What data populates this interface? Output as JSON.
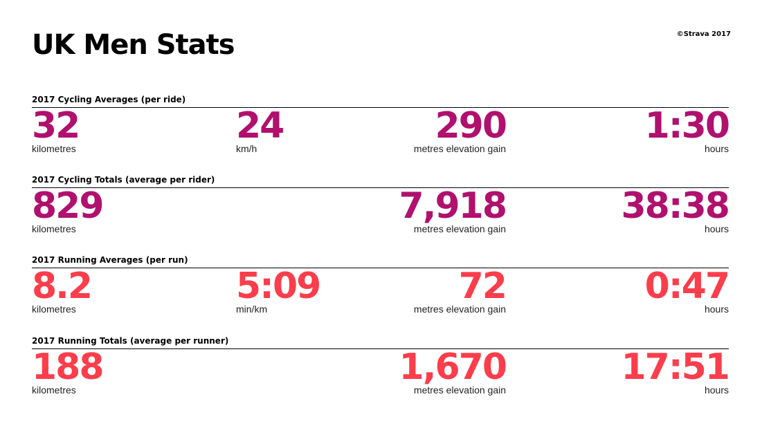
{
  "header": {
    "title": "UK Men Stats",
    "copyright": "©Strava 2017"
  },
  "colors": {
    "cycling": "#b0106e",
    "running": "#fc3d4b"
  },
  "sections": [
    {
      "title": "2017 Cycling Averages (per ride)",
      "stats": [
        {
          "value": "32",
          "unit": "kilometres"
        },
        {
          "value": "24",
          "unit": "km/h"
        },
        {
          "value": "290",
          "unit": "metres elevation gain"
        },
        {
          "value": "1:30",
          "unit": "hours"
        }
      ]
    },
    {
      "title": "2017 Cycling Totals (average per rider)",
      "stats": [
        {
          "value": "829",
          "unit": "kilometres"
        },
        {
          "value": "7,918",
          "unit": "metres elevation gain"
        },
        {
          "value": "38:38",
          "unit": "hours"
        }
      ]
    },
    {
      "title": "2017 Running Averages (per run)",
      "stats": [
        {
          "value": "8.2",
          "unit": "kilometres"
        },
        {
          "value": "5:09",
          "unit": "min/km"
        },
        {
          "value": "72",
          "unit": "metres elevation gain"
        },
        {
          "value": "0:47",
          "unit": "hours"
        }
      ]
    },
    {
      "title": "2017 Running Totals (average per runner)",
      "stats": [
        {
          "value": "188",
          "unit": "kilometres"
        },
        {
          "value": "1,670",
          "unit": "metres elevation gain"
        },
        {
          "value": "17:51",
          "unit": "hours"
        }
      ]
    }
  ]
}
